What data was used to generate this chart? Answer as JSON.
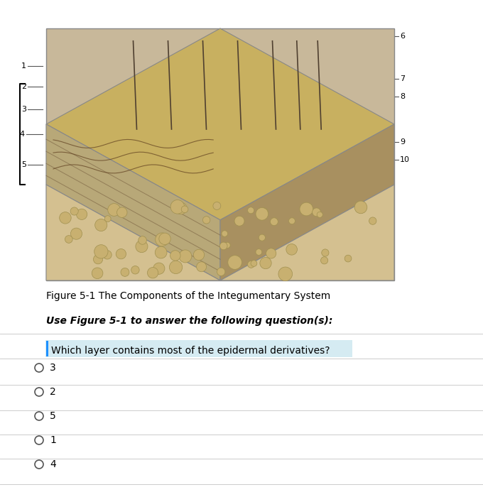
{
  "bg_color": "#f0f0f0",
  "page_bg": "#ffffff",
  "figure_caption": "Figure 5-1 The Components of the Integumentary System",
  "instruction_text": "Use Figure 5-1 to answer the following question(s):",
  "question_text": "Which layer contains most of the epidermal derivatives?",
  "question_highlight_color": "#add8e6",
  "question_left_bar_color": "#1e90ff",
  "answer_choices": [
    "3",
    "2",
    "5",
    "1",
    "4"
  ],
  "caption_fontsize": 10,
  "instruction_fontsize": 10,
  "question_fontsize": 10,
  "answer_fontsize": 10,
  "text_color": "#000000",
  "instruction_style": "italic",
  "left_numbers": [
    "1",
    "2",
    "3",
    "4",
    "5"
  ],
  "right_numbers": [
    "6",
    "7",
    "8",
    "9",
    "10"
  ],
  "image_bg": "#c8b89a",
  "bracket_color": "#000000"
}
